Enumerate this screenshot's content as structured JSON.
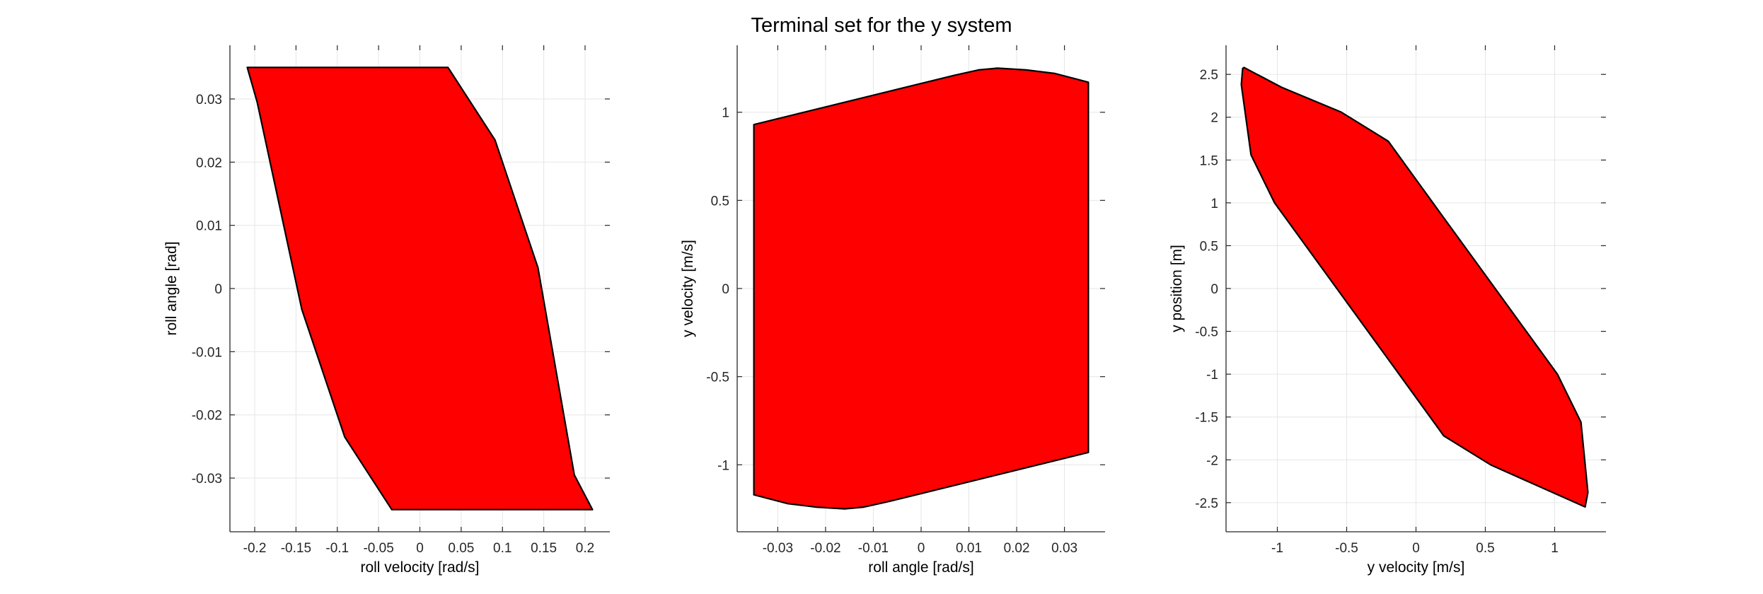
{
  "figure": {
    "title": "Terminal set for the y system"
  },
  "colors": {
    "fill": "#ff0000",
    "edge": "#000000",
    "grid": "#e6e6e6",
    "axis": "#262626"
  },
  "chart_data": [
    {
      "type": "area",
      "title": "",
      "xlabel": "roll velocity [rad/s]",
      "ylabel": "roll angle [rad]",
      "xlim": [
        -0.23,
        0.23
      ],
      "ylim": [
        -0.0385,
        0.0385
      ],
      "xticks": [
        -0.2,
        -0.15,
        -0.1,
        -0.05,
        0,
        0.05,
        0.1,
        0.15,
        0.2
      ],
      "xtick_labels": [
        "-0.2",
        "-0.15",
        "-0.1",
        "-0.05",
        "0",
        "0.05",
        "0.1",
        "0.15",
        "0.2"
      ],
      "yticks": [
        -0.03,
        -0.02,
        -0.01,
        0,
        0.01,
        0.02,
        0.03
      ],
      "ytick_labels": [
        "-0.03",
        "-0.02",
        "-0.01",
        "0",
        "0.01",
        "0.02",
        "0.03"
      ],
      "grid": true,
      "series": [
        {
          "polygon": [
            [
              -0.209,
              0.035
            ],
            [
              0.034,
              0.035
            ],
            [
              0.091,
              0.0235
            ],
            [
              0.143,
              0.0033
            ],
            [
              0.187,
              -0.0295
            ],
            [
              0.209,
              -0.035
            ],
            [
              -0.034,
              -0.035
            ],
            [
              -0.091,
              -0.0235
            ],
            [
              -0.143,
              -0.0033
            ],
            [
              -0.197,
              0.0295
            ]
          ]
        }
      ]
    },
    {
      "type": "area",
      "title": "",
      "xlabel": "roll angle [rad/s]",
      "ylabel": "y velocity [m/s]",
      "xlim": [
        -0.0385,
        0.0385
      ],
      "ylim": [
        -1.38,
        1.38
      ],
      "xticks": [
        -0.03,
        -0.02,
        -0.01,
        0,
        0.01,
        0.02,
        0.03
      ],
      "xtick_labels": [
        "-0.03",
        "-0.02",
        "-0.01",
        "0",
        "0.01",
        "0.02",
        "0.03"
      ],
      "yticks": [
        -1,
        -0.5,
        0,
        0.5,
        1
      ],
      "ytick_labels": [
        "-1",
        "-0.5",
        "0",
        "0.5",
        "1"
      ],
      "grid": true,
      "series": [
        {
          "polygon": [
            [
              -0.035,
              0.93
            ],
            [
              0.007,
              1.21
            ],
            [
              0.012,
              1.24
            ],
            [
              0.016,
              1.25
            ],
            [
              0.022,
              1.24
            ],
            [
              0.028,
              1.22
            ],
            [
              0.035,
              1.17
            ],
            [
              0.035,
              -0.93
            ],
            [
              -0.007,
              -1.21
            ],
            [
              -0.012,
              -1.24
            ],
            [
              -0.016,
              -1.25
            ],
            [
              -0.022,
              -1.24
            ],
            [
              -0.028,
              -1.22
            ],
            [
              -0.035,
              -1.17
            ]
          ]
        }
      ]
    },
    {
      "type": "area",
      "title": "",
      "xlabel": "y velocity [m/s]",
      "ylabel": "y position [m]",
      "xlim": [
        -1.37,
        1.37
      ],
      "ylim": [
        -2.84,
        2.84
      ],
      "xticks": [
        -1,
        -0.5,
        0,
        0.5,
        1
      ],
      "xtick_labels": [
        "-1",
        "-0.5",
        "0",
        "0.5",
        "1"
      ],
      "yticks": [
        -2.5,
        -2,
        -1.5,
        -1,
        -0.5,
        0,
        0.5,
        1,
        1.5,
        2,
        2.5
      ],
      "ytick_labels": [
        "-2.5",
        "-2",
        "-1.5",
        "-1",
        "-0.5",
        "0",
        "0.5",
        "1",
        "1.5",
        "2",
        "2.5"
      ],
      "grid": true,
      "series": [
        {
          "polygon": [
            [
              -1.24,
              2.58
            ],
            [
              -0.97,
              2.35
            ],
            [
              -0.54,
              2.06
            ],
            [
              -0.2,
              1.72
            ],
            [
              0.14,
              0.96
            ],
            [
              1.02,
              -1.0
            ],
            [
              1.19,
              -1.56
            ],
            [
              1.24,
              -2.38
            ],
            [
              1.22,
              -2.55
            ],
            [
              0.54,
              -2.06
            ],
            [
              0.2,
              -1.72
            ],
            [
              -0.14,
              -0.96
            ],
            [
              -1.02,
              1.0
            ],
            [
              -1.19,
              1.56
            ],
            [
              -1.26,
              2.38
            ],
            [
              -1.25,
              2.57
            ]
          ]
        }
      ]
    }
  ]
}
